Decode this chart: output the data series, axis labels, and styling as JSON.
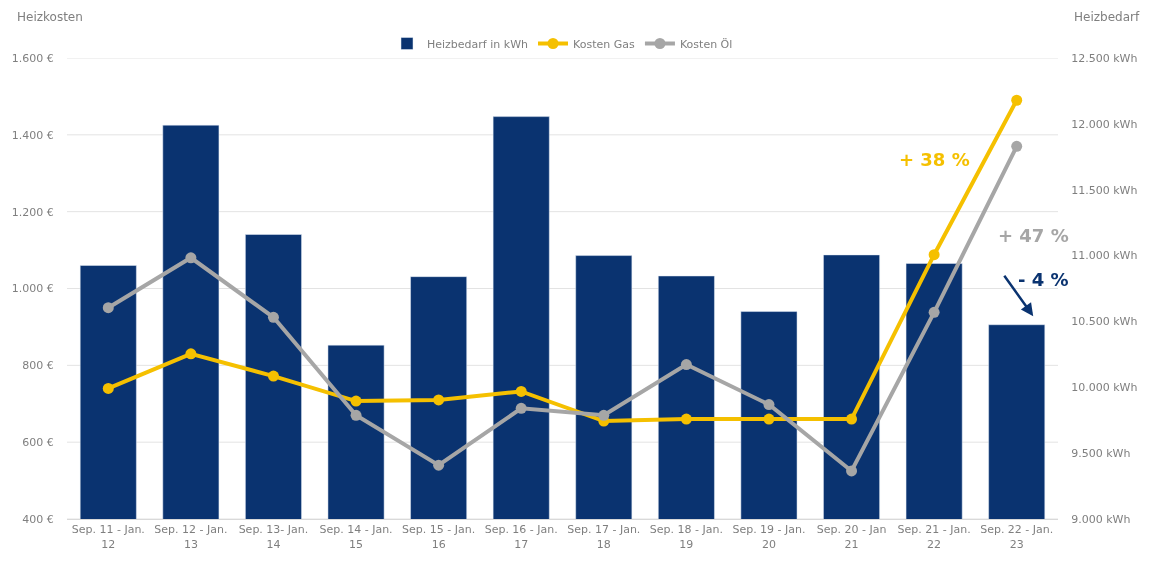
{
  "chart_data": {
    "type": "bar",
    "ylabel": "Heizkosten",
    "y2label": "Heizbedarf",
    "categories": [
      "Sep. 11 - Jan. 12",
      "Sep. 12 - Jan. 13",
      "Sep. 13- Jan. 14",
      "Sep. 14 - Jan. 15",
      "Sep. 15 - Jan. 16",
      "Sep. 16 - Jan. 17",
      "Sep. 17 - Jan. 18",
      "Sep. 18 - Jan. 19",
      "Sep. 19 - Jan. 20",
      "Sep. 20 - Jan 21",
      "Sep. 21 - Jan. 22",
      "Sep. 22 - Jan. 23"
    ],
    "series": [
      {
        "name": "Heizbedarf in kWh",
        "axis": "y2",
        "color": "#0a3370",
        "values": [
          10925,
          11990,
          11160,
          10320,
          10840,
          12055,
          11000,
          10845,
          10575,
          11005,
          10940,
          10475
        ]
      },
      {
        "name": "Kosten Gas",
        "type": "line",
        "marker": "circle",
        "color": "#f5c000",
        "values": [
          740,
          830,
          772,
          707,
          710,
          732,
          655,
          660,
          660,
          660,
          1088,
          1490
        ]
      },
      {
        "name": "Kosten Öl",
        "type": "line",
        "marker": "circle",
        "color": "#a6a6a6",
        "values": [
          950,
          1080,
          925,
          670,
          540,
          688,
          670,
          802,
          698,
          525,
          938,
          1370
        ]
      }
    ],
    "ylim": [
      400,
      1600
    ],
    "yticks": [
      {
        "value": 400,
        "label": "400 €"
      },
      {
        "value": 600,
        "label": "600 €"
      },
      {
        "value": 800,
        "label": "800 €"
      },
      {
        "value": 1000,
        "label": "1.000 €"
      },
      {
        "value": 1200,
        "label": "1.200 €"
      },
      {
        "value": 1400,
        "label": "1.400 €"
      },
      {
        "value": 1600,
        "label": "1.600 €"
      }
    ],
    "y2lim": [
      9000,
      12500
    ],
    "y2ticks": [
      {
        "value": 9000,
        "label": "9.000 kWh"
      },
      {
        "value": 9500,
        "label": "9.500 kWh"
      },
      {
        "value": 10000,
        "label": "10.000 kWh"
      },
      {
        "value": 10500,
        "label": "10.500 kWh"
      },
      {
        "value": 11000,
        "label": "11.000 kWh"
      },
      {
        "value": 11500,
        "label": "11.500 kWh"
      },
      {
        "value": 12000,
        "label": "12.000 kWh"
      },
      {
        "value": 12500,
        "label": "12.500 kWh"
      }
    ],
    "annotations": [
      "+ 38 %",
      "+ 47 %",
      "- 4 %"
    ],
    "grid": "y",
    "legend": "top"
  }
}
